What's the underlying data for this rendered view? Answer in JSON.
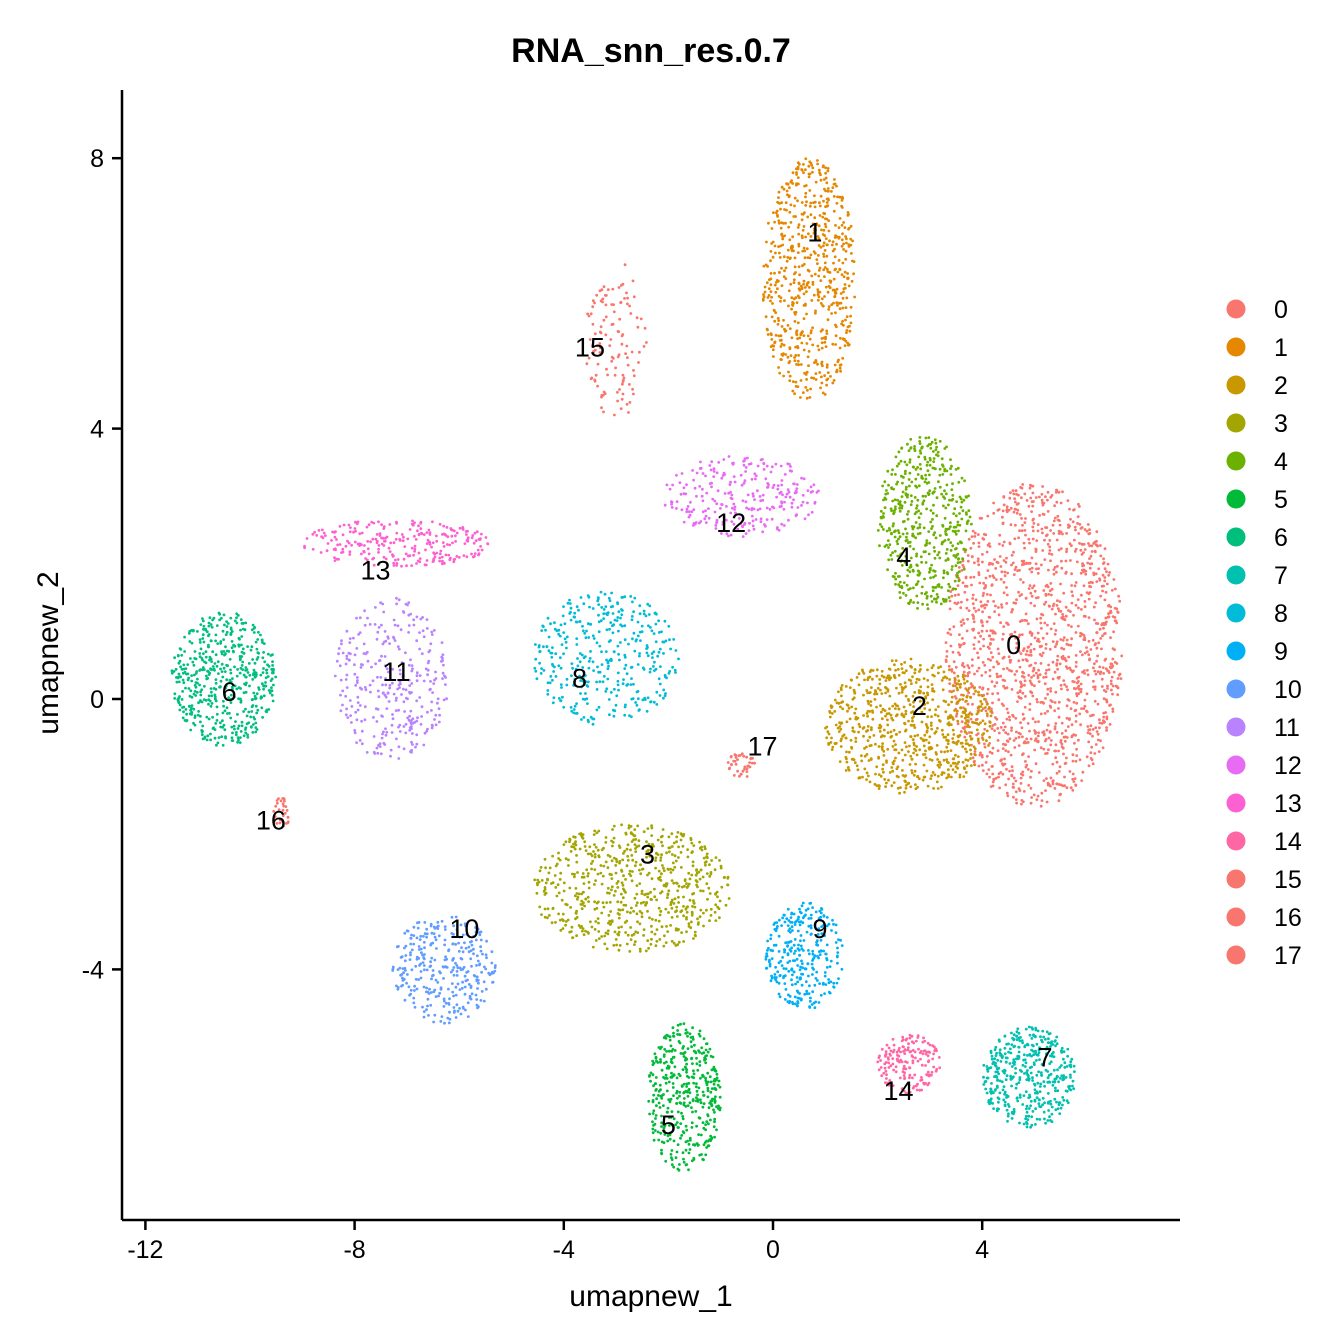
{
  "chart_data": {
    "type": "scatter",
    "title": "RNA_snn_res.0.7",
    "xlabel": "umapnew_1",
    "ylabel": "umapnew_2",
    "xlim": [
      -12.5,
      7.8
    ],
    "ylim": [
      -7.8,
      9.0
    ],
    "x_ticks": [
      -12,
      -8,
      -4,
      0,
      4
    ],
    "y_ticks": [
      -4,
      0,
      4,
      8
    ],
    "x_tick_labels": [
      "-12",
      "-8",
      "-4",
      "0",
      "4"
    ],
    "y_tick_labels": [
      "-4",
      "0",
      "4",
      "8"
    ],
    "grid": false,
    "legend_position": "right",
    "clusters": [
      {
        "name": "0",
        "color": "#F8766D",
        "label_pos": [
          4.6,
          0.8
        ]
      },
      {
        "name": "1",
        "color": "#E58700",
        "label_pos": [
          0.8,
          6.9
        ]
      },
      {
        "name": "2",
        "color": "#C99800",
        "label_pos": [
          2.8,
          -0.1
        ]
      },
      {
        "name": "3",
        "color": "#A3A500",
        "label_pos": [
          -2.4,
          -2.3
        ]
      },
      {
        "name": "4",
        "color": "#6BB100",
        "label_pos": [
          2.5,
          2.1
        ]
      },
      {
        "name": "5",
        "color": "#00BA38",
        "label_pos": [
          -2.0,
          -6.3
        ]
      },
      {
        "name": "6",
        "color": "#00BF7D",
        "label_pos": [
          -10.4,
          0.1
        ]
      },
      {
        "name": "7",
        "color": "#00C0AF",
        "label_pos": [
          5.2,
          -5.3
        ]
      },
      {
        "name": "8",
        "color": "#00BCD8",
        "label_pos": [
          -3.7,
          0.3
        ]
      },
      {
        "name": "9",
        "color": "#00B0F6",
        "label_pos": [
          0.9,
          -3.4
        ]
      },
      {
        "name": "10",
        "color": "#619CFF",
        "label_pos": [
          -5.9,
          -3.4
        ]
      },
      {
        "name": "11",
        "color": "#B983FF",
        "label_pos": [
          -7.2,
          0.4
        ]
      },
      {
        "name": "12",
        "color": "#E76BF3",
        "label_pos": [
          -0.8,
          2.6
        ]
      },
      {
        "name": "13",
        "color": "#FD61D1",
        "label_pos": [
          -7.6,
          1.9
        ]
      },
      {
        "name": "14",
        "color": "#FF67A4",
        "label_pos": [
          2.4,
          -5.8
        ]
      },
      {
        "name": "15",
        "color": "#F8766D",
        "label_pos": [
          -3.5,
          5.2
        ]
      },
      {
        "name": "16",
        "color": "#F8766D",
        "label_pos": [
          -9.6,
          -1.8
        ]
      },
      {
        "name": "17",
        "color": "#F8766D",
        "label_pos": [
          -0.2,
          -0.7
        ]
      }
    ]
  }
}
